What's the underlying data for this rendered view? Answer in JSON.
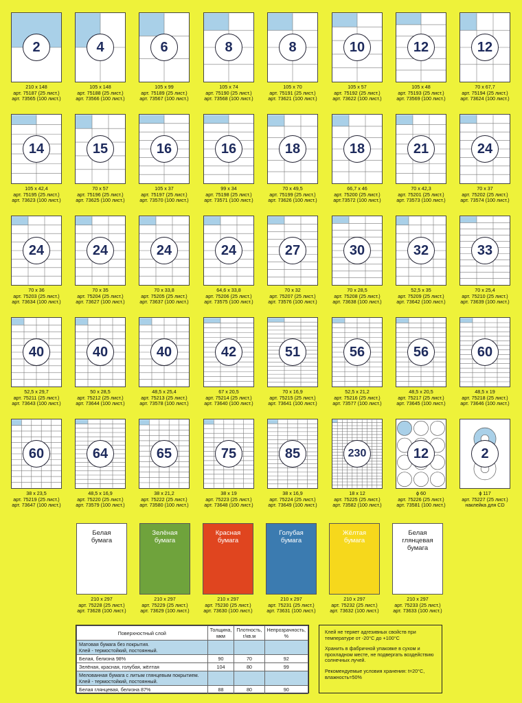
{
  "label_rows": [
    [
      {
        "n": "2",
        "size": "210 x 148",
        "art1": "арт. 75187 (25 лист.)",
        "art2": "арт. 73565 (100 лист.)",
        "cols": 1,
        "rows": 2
      },
      {
        "n": "4",
        "size": "105 x 148",
        "art1": "арт. 75188 (25 лист.)",
        "art2": "арт. 73566 (100 лист.)",
        "cols": 2,
        "rows": 2
      },
      {
        "n": "6",
        "size": "105 x 99",
        "art1": "арт. 75189 (25 лист.)",
        "art2": "арт. 73567 (100 лист.)",
        "cols": 2,
        "rows": 3
      },
      {
        "n": "8",
        "size": "105 x 74",
        "art1": "арт. 75190 (25 лист.)",
        "art2": "арт. 73568 (100 лист.)",
        "cols": 2,
        "rows": 4
      },
      {
        "n": "8",
        "size": "105 x 70",
        "art1": "арт. 75191 (25 лист.)",
        "art2": "арт. 73621 (100 лист.)",
        "cols": 2,
        "rows": 4
      },
      {
        "n": "10",
        "size": "105 x 57",
        "art1": "арт. 75192 (25 лист.)",
        "art2": "арт. 73622 (100 лист.)",
        "cols": 2,
        "rows": 5
      },
      {
        "n": "12",
        "size": "105 x 48",
        "art1": "арт. 75193 (25 лист.)",
        "art2": "арт. 73569 (100 лист.)",
        "cols": 2,
        "rows": 6
      },
      {
        "n": "12",
        "size": "70 x 67,7",
        "art1": "арт. 75194 (25 лист.)",
        "art2": "арт. 73624 (100 лист.)",
        "cols": 3,
        "rows": 4
      }
    ],
    [
      {
        "n": "14",
        "size": "105 x 42,4",
        "art1": "арт. 75195 (25 лист.)",
        "art2": "арт. 73623 (100 лист.)",
        "cols": 2,
        "rows": 7
      },
      {
        "n": "15",
        "size": "70 x 57",
        "art1": "арт. 75196 (25 лист.)",
        "art2": "арт. 73625 (100 лист.)",
        "cols": 3,
        "rows": 5
      },
      {
        "n": "16",
        "size": "105 x 37",
        "art1": "арт. 75197 (25 лист.)",
        "art2": "арт. 73570 (100 лист.)",
        "cols": 2,
        "rows": 8
      },
      {
        "n": "16",
        "size": "99 x 34",
        "art1": "арт. 75198 (25 лист.)",
        "art2": "арт. 73571 (100 лист.)",
        "cols": 2,
        "rows": 8
      },
      {
        "n": "18",
        "size": "70 x 49,5",
        "art1": "арт. 75199 (25 лист.)",
        "art2": "арт. 73626 (100 лист.)",
        "cols": 3,
        "rows": 6
      },
      {
        "n": "18",
        "size": "66,7 x 46",
        "art1": "арт. 75200 (25 лист.)",
        "art2": "арт.73572 (100 лист.)",
        "cols": 3,
        "rows": 6
      },
      {
        "n": "21",
        "size": "70 x 42,3",
        "art1": "арт. 75201 (25 лист.)",
        "art2": "арт. 73573 (100 лист.)",
        "cols": 3,
        "rows": 7
      },
      {
        "n": "24",
        "size": "70 x 37",
        "art1": "арт. 75202 (25 лист.)",
        "art2": "арт. 73574 (100 лист.)",
        "cols": 3,
        "rows": 8
      }
    ],
    [
      {
        "n": "24",
        "size": "70 x 36",
        "art1": "арт. 75203 (25 лист.)",
        "art2": "арт. 73634 (100 лист.)",
        "cols": 3,
        "rows": 8
      },
      {
        "n": "24",
        "size": "70 x 35",
        "art1": "арт. 75204 (25 лист.)",
        "art2": "арт. 73627 (100 лист.)",
        "cols": 3,
        "rows": 8
      },
      {
        "n": "24",
        "size": "70 x 33,8",
        "art1": "арт. 75205 (25 лист.)",
        "art2": "арт. 73637 (100 лист.)",
        "cols": 3,
        "rows": 8
      },
      {
        "n": "24",
        "size": "64,6 x 33,8",
        "art1": "арт. 75206 (25 лист.)",
        "art2": "арт. 73575 (100 лист.)",
        "cols": 3,
        "rows": 8
      },
      {
        "n": "27",
        "size": "70 x 32",
        "art1": "арт. 75207 (25 лист.)",
        "art2": "арт. 73576 (100 лист.)",
        "cols": 3,
        "rows": 9
      },
      {
        "n": "30",
        "size": "70 x 28,5",
        "art1": "арт. 75208 (25 лист.)",
        "art2": "арт. 73638 (100 лист.)",
        "cols": 3,
        "rows": 10
      },
      {
        "n": "32",
        "size": "52,5 x 35",
        "art1": "арт. 75209 (25 лист.)",
        "art2": "арт. 73642 (100 лист.)",
        "cols": 4,
        "rows": 8
      },
      {
        "n": "33",
        "size": "70 x 25,4",
        "art1": "арт. 75210 (25 лист.)",
        "art2": "арт. 73639 (100 лист.)",
        "cols": 3,
        "rows": 11
      }
    ],
    [
      {
        "n": "40",
        "size": "52,5 x 29,7",
        "art1": "арт. 75211 (25 лист.)",
        "art2": "арт. 73643 (100 лист.)",
        "cols": 4,
        "rows": 10
      },
      {
        "n": "40",
        "size": "50 x 28,5",
        "art1": "арт. 75212 (25 лист.)",
        "art2": "арт. 73644 (100 лист.)",
        "cols": 4,
        "rows": 10
      },
      {
        "n": "40",
        "size": "48,5 x 25,4",
        "art1": "арт. 75213 (25 лист.)",
        "art2": "арт. 73578 (100 лист.)",
        "cols": 4,
        "rows": 10
      },
      {
        "n": "42",
        "size": "67 x 20,5",
        "art1": "арт. 75214 (25 лист.)",
        "art2": "арт. 73640 (100 лист.)",
        "cols": 3,
        "rows": 14
      },
      {
        "n": "51",
        "size": "70 x 16,9",
        "art1": "арт. 75215 (25 лист.)",
        "art2": "арт. 73641 (100 лист.)",
        "cols": 3,
        "rows": 17
      },
      {
        "n": "56",
        "size": "52,5 x 21,2",
        "art1": "арт. 75216 (25 лист.)",
        "art2": "арт. 73577 (100 лист.)",
        "cols": 4,
        "rows": 14
      },
      {
        "n": "56",
        "size": "48,5 x 20,5",
        "art1": "арт. 75217 (25 лист.)",
        "art2": "арт. 73645 (100 лист.)",
        "cols": 4,
        "rows": 14
      },
      {
        "n": "60",
        "size": "48,5 x 19",
        "art1": "арт. 75218 (25 лист.)",
        "art2": "арт. 73646 (100 лист.)",
        "cols": 4,
        "rows": 15
      }
    ],
    [
      {
        "n": "60",
        "size": "38 x 23,5",
        "art1": "арт. 75219 (25 лист.)",
        "art2": "арт. 73647 (100 лист.)",
        "cols": 5,
        "rows": 12
      },
      {
        "n": "64",
        "size": "48,5 x 16,9",
        "art1": "арт. 75220 (25 лист.)",
        "art2": "арт. 73579 (100 лист.)",
        "cols": 4,
        "rows": 16
      },
      {
        "n": "65",
        "size": "38 x 21,2",
        "art1": "арт. 75222 (25 лист.)",
        "art2": "арт. 73580 (100 лист.)",
        "cols": 5,
        "rows": 13
      },
      {
        "n": "75",
        "size": "38 x 19",
        "art1": "арт. 75223 (25 лист.)",
        "art2": "арт. 73648 (100 лист.)",
        "cols": 5,
        "rows": 15
      },
      {
        "n": "85",
        "size": "38 x 16,9",
        "art1": "арт. 75224 (25 лист.)",
        "art2": "арт. 73649 (100 лист.)",
        "cols": 5,
        "rows": 17
      },
      {
        "n": "230",
        "size": "18 x 12",
        "art1": "арт. 75225 (25 лист.)",
        "art2": "арт. 73582 (100 лист.)",
        "cols": 10,
        "rows": 23
      },
      {
        "n": "12",
        "size": "ϕ 60",
        "art1": "арт. 75226 (25 лист.)",
        "art2": "арт. 73581 (100 лист.)",
        "cols": 3,
        "rows": 4,
        "shape": "circles"
      },
      {
        "n": "2",
        "size": "ϕ 117",
        "art1": "арт. 75227 (25 лист.)",
        "art2": "наклейка для CD",
        "cols": 1,
        "rows": 2,
        "shape": "cd"
      }
    ]
  ],
  "papers": [
    {
      "title": "Белая бумага",
      "color": "#ffffff",
      "text_color": "#222222",
      "size": "210 x 297",
      "art1": "арт. 75228 (25 лист.)",
      "art2": "арт. 73628 (100 лист.)"
    },
    {
      "title": "Зелёная бумага",
      "color": "#6fa33c",
      "text_color": "#ffffff",
      "size": "210 x 297",
      "art1": "арт. 75229 (25 лист.)",
      "art2": "арт. 73629 (100 лист.)"
    },
    {
      "title": "Красная бумага",
      "color": "#e0451f",
      "text_color": "#ffffff",
      "size": "210 x 297",
      "art1": "арт. 75230 (25 лист.)",
      "art2": "арт. 73630 (100 лист.)"
    },
    {
      "title": "Голубая бумага",
      "color": "#3b7bb0",
      "text_color": "#ffffff",
      "size": "210 x 297",
      "art1": "арт. 75231 (25 лист.)",
      "art2": "арт. 73631 (100 лист.)"
    },
    {
      "title": "Жёлтая бумага",
      "color": "#f6d81c",
      "text_color": "#ffffff",
      "size": "210 x 297",
      "art1": "арт. 75232 (25 лист.)",
      "art2": "арт. 73632 (100 лист.)"
    },
    {
      "title": "Белая глянцевая бумага",
      "color": "#ffffff",
      "text_color": "#222222",
      "size": "210 x 297",
      "art1": "арт. 75233 (25 лист.)",
      "art2": "арт. 73633 (100 лист.)"
    }
  ],
  "table": {
    "headers": [
      "Поверхностный слой",
      "Толщина, мкм",
      "Плотность, г/кв.м",
      "Непрозрачность, %"
    ],
    "rows": [
      {
        "band": true,
        "cells": [
          "Матовая бумага без покрытия.\nКлей - термостойкий, постоянный.",
          "",
          "",
          ""
        ]
      },
      {
        "band": false,
        "cells": [
          "Белая, белизна 98%",
          "90",
          "70",
          "92"
        ]
      },
      {
        "band": false,
        "cells": [
          "Зелёная, красная,  голубая, жёлтая",
          "104",
          "80",
          "99"
        ]
      },
      {
        "band": true,
        "cells": [
          "Мелованная бумага с литым глянцевым покрытием.\nКлей - термостойкий, постоянный.",
          "",
          "",
          ""
        ]
      },
      {
        "band": false,
        "cells": [
          "Белая глянцевая, белизна 87%",
          "88",
          "80",
          "90"
        ]
      }
    ]
  },
  "notes": [
    "Клей не теряет адгезивных свойств при температуре от -20°С до +100°С",
    "Хранить в фабричной упаковке в сухом и прохладном месте, не подвергать воздействию солнечных лучей.",
    "Рекомендуемые условия хранения: t=20°С, влажность=50%"
  ]
}
